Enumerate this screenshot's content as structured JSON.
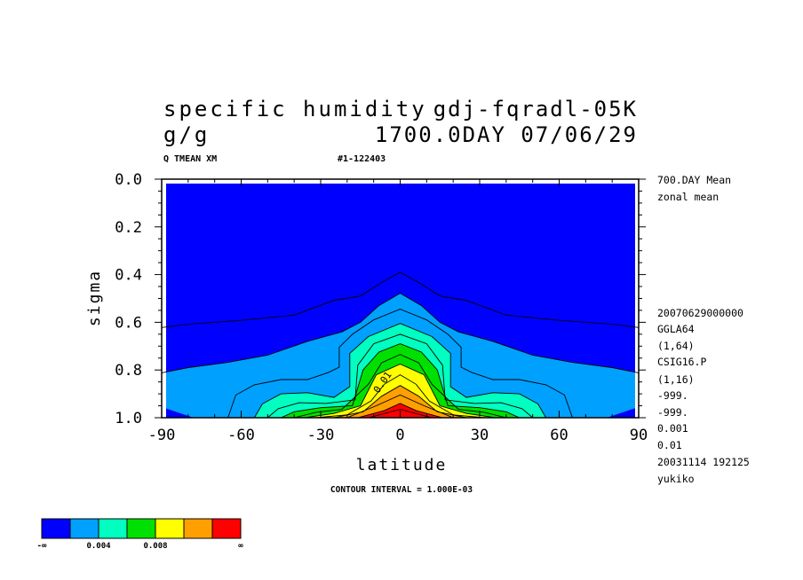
{
  "header": {
    "variable": "specific humidity",
    "run": "gdj-fqradl-05K",
    "unit": "g/g",
    "time_info": "1700.0DAY 07/06/29",
    "sub_left": "Q TMEAN XM",
    "sub_right": "#1-122403"
  },
  "info_panel": [
    "700.DAY Mean",
    "zonal mean",
    "20070629000000",
    "GGLA64",
    "(1,64)",
    "CSIG16.P",
    "(1,16)",
    "-999.",
    "-999.",
    "0.001",
    "0.01",
    "20031114 192125",
    "yukiko"
  ],
  "footer": {
    "contour_interval": "CONTOUR INTERVAL = 1.000E-03"
  },
  "chart_data": {
    "type": "heatmap",
    "title": "specific humidity",
    "xlabel": "latitude",
    "ylabel": "sigma",
    "xlim": [
      -90,
      90
    ],
    "ylim": [
      1.0,
      0.0
    ],
    "x_ticks": [
      -90,
      -60,
      -30,
      0,
      30,
      60,
      90
    ],
    "x_tick_labels": [
      "-90",
      "-60",
      "-30",
      "0",
      "30",
      "60",
      "90"
    ],
    "y_ticks": [
      0.0,
      0.2,
      0.4,
      0.6,
      0.8,
      1.0
    ],
    "y_tick_labels": [
      "0.0",
      "0.2",
      "0.4",
      "0.6",
      "0.8",
      "1.0"
    ],
    "contour_interval": 0.001,
    "contour_label": "0.01",
    "contour_label_position": {
      "lat": -6,
      "sigma": 0.88
    },
    "levels": [
      {
        "value": 0.001,
        "points": [
          [
            -90,
            0.622
          ],
          [
            -80,
            0.608
          ],
          [
            -60,
            0.592
          ],
          [
            -40,
            0.57
          ],
          [
            -25,
            0.508
          ],
          [
            -15,
            0.49
          ],
          [
            -8,
            0.44
          ],
          [
            0,
            0.39
          ],
          [
            8,
            0.44
          ],
          [
            15,
            0.49
          ],
          [
            25,
            0.508
          ],
          [
            40,
            0.57
          ],
          [
            60,
            0.592
          ],
          [
            80,
            0.608
          ],
          [
            90,
            0.622
          ]
        ]
      },
      {
        "value": 0.002,
        "points": [
          [
            -90,
            0.812
          ],
          [
            -80,
            0.79
          ],
          [
            -65,
            0.768
          ],
          [
            -50,
            0.738
          ],
          [
            -35,
            0.68
          ],
          [
            -22,
            0.64
          ],
          [
            -15,
            0.6
          ],
          [
            -8,
            0.53
          ],
          [
            0,
            0.478
          ],
          [
            8,
            0.53
          ],
          [
            15,
            0.6
          ],
          [
            22,
            0.64
          ],
          [
            35,
            0.68
          ],
          [
            50,
            0.738
          ],
          [
            65,
            0.768
          ],
          [
            80,
            0.79
          ],
          [
            90,
            0.812
          ]
        ]
      },
      {
        "value": 0.003,
        "points": [
          [
            -65,
            1.0
          ],
          [
            -62,
            0.905
          ],
          [
            -55,
            0.862
          ],
          [
            -45,
            0.84
          ],
          [
            -35,
            0.84
          ],
          [
            -27,
            0.81
          ],
          [
            -23,
            0.788
          ],
          [
            -23,
            0.705
          ],
          [
            -18,
            0.65
          ],
          [
            -10,
            0.59
          ],
          [
            0,
            0.545
          ],
          [
            10,
            0.59
          ],
          [
            18,
            0.65
          ],
          [
            23,
            0.705
          ],
          [
            23,
            0.788
          ],
          [
            27,
            0.81
          ],
          [
            35,
            0.84
          ],
          [
            45,
            0.84
          ],
          [
            55,
            0.862
          ],
          [
            62,
            0.905
          ],
          [
            65,
            1.0
          ]
        ]
      },
      {
        "value": 0.004,
        "points": [
          [
            -55,
            1.0
          ],
          [
            -52,
            0.942
          ],
          [
            -45,
            0.9
          ],
          [
            -35,
            0.895
          ],
          [
            -25,
            0.915
          ],
          [
            -19,
            0.87
          ],
          [
            -19,
            0.73
          ],
          [
            -12,
            0.66
          ],
          [
            0,
            0.605
          ],
          [
            12,
            0.66
          ],
          [
            19,
            0.73
          ],
          [
            19,
            0.87
          ],
          [
            25,
            0.915
          ],
          [
            35,
            0.895
          ],
          [
            45,
            0.9
          ],
          [
            52,
            0.942
          ],
          [
            55,
            1.0
          ]
        ]
      },
      {
        "value": 0.005,
        "points": [
          [
            -50,
            1.0
          ],
          [
            -46,
            0.962
          ],
          [
            -38,
            0.937
          ],
          [
            -28,
            0.94
          ],
          [
            -17,
            0.925
          ],
          [
            -16,
            0.78
          ],
          [
            -10,
            0.69
          ],
          [
            0,
            0.65
          ],
          [
            10,
            0.69
          ],
          [
            16,
            0.78
          ],
          [
            17,
            0.925
          ],
          [
            28,
            0.94
          ],
          [
            38,
            0.937
          ],
          [
            46,
            0.962
          ],
          [
            50,
            1.0
          ]
        ]
      },
      {
        "value": 0.006,
        "points": [
          [
            -45,
            1.0
          ],
          [
            -40,
            0.975
          ],
          [
            -30,
            0.958
          ],
          [
            -18,
            0.95
          ],
          [
            -14,
            0.8
          ],
          [
            -8,
            0.725
          ],
          [
            0,
            0.69
          ],
          [
            8,
            0.725
          ],
          [
            14,
            0.8
          ],
          [
            18,
            0.95
          ],
          [
            30,
            0.958
          ],
          [
            40,
            0.975
          ],
          [
            45,
            1.0
          ]
        ]
      },
      {
        "value": 0.007,
        "points": [
          [
            -40,
            1.0
          ],
          [
            -32,
            0.978
          ],
          [
            -22,
            0.965
          ],
          [
            -12,
            0.86
          ],
          [
            -7,
            0.77
          ],
          [
            0,
            0.735
          ],
          [
            7,
            0.77
          ],
          [
            12,
            0.86
          ],
          [
            22,
            0.965
          ],
          [
            32,
            0.978
          ],
          [
            40,
            1.0
          ]
        ]
      },
      {
        "value": 0.008,
        "points": [
          [
            -36,
            1.0
          ],
          [
            -25,
            0.982
          ],
          [
            -15,
            0.95
          ],
          [
            -9,
            0.82
          ],
          [
            0,
            0.775
          ],
          [
            9,
            0.82
          ],
          [
            15,
            0.95
          ],
          [
            25,
            0.982
          ],
          [
            36,
            1.0
          ]
        ]
      },
      {
        "value": 0.009,
        "points": [
          [
            -32,
            1.0
          ],
          [
            -20,
            0.988
          ],
          [
            -11,
            0.93
          ],
          [
            -6,
            0.86
          ],
          [
            0,
            0.82
          ],
          [
            6,
            0.86
          ],
          [
            11,
            0.93
          ],
          [
            20,
            0.988
          ],
          [
            32,
            1.0
          ]
        ]
      },
      {
        "value": 0.01,
        "points": [
          [
            -25,
            1.0
          ],
          [
            -14,
            0.975
          ],
          [
            -7,
            0.91
          ],
          [
            0,
            0.865
          ],
          [
            7,
            0.91
          ],
          [
            14,
            0.975
          ],
          [
            25,
            1.0
          ]
        ]
      },
      {
        "value": 0.011,
        "points": [
          [
            -20,
            1.0
          ],
          [
            -9,
            0.95
          ],
          [
            0,
            0.905
          ],
          [
            9,
            0.95
          ],
          [
            20,
            1.0
          ]
        ]
      },
      {
        "value": 0.012,
        "points": [
          [
            -16,
            1.0
          ],
          [
            -6,
            0.97
          ],
          [
            0,
            0.94
          ],
          [
            6,
            0.97
          ],
          [
            16,
            1.0
          ]
        ]
      },
      {
        "value": 0.013,
        "points": [
          [
            -12,
            1.0
          ],
          [
            0,
            0.965
          ],
          [
            12,
            1.0
          ]
        ]
      }
    ],
    "polar_patch_points": [
      [
        -90,
        0.955
      ],
      [
        -78,
        1.0
      ]
    ],
    "polar_patch_points_right": [
      [
        90,
        0.955
      ],
      [
        78,
        1.0
      ]
    ],
    "fill_colors": [
      "#0000ff",
      "#00a0ff",
      "#00ffc0",
      "#00e000",
      "#ffff00",
      "#ffa000",
      "#ff0000"
    ],
    "fill_level_thresholds": [
      0.002,
      0.004,
      0.006,
      0.008,
      0.01,
      0.012
    ],
    "colorbar": {
      "colors": [
        "#0000ff",
        "#00a0ff",
        "#00ffc0",
        "#00e000",
        "#ffff00",
        "#ffa000",
        "#ff0000"
      ],
      "tick_labels": [
        "-∞",
        "0.004",
        "0.008",
        "∞"
      ]
    }
  }
}
